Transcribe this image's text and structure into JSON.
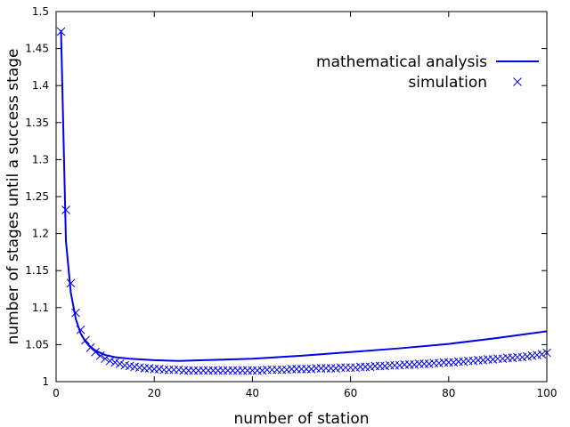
{
  "chart_data": {
    "type": "line",
    "xlabel": "number of station",
    "ylabel": "number of stages until a success stage",
    "xlim": [
      0,
      100
    ],
    "ylim": [
      1,
      1.5
    ],
    "x_ticks": [
      0,
      20,
      40,
      60,
      80,
      100
    ],
    "x_tick_labels": [
      "0",
      "20",
      "40",
      "60",
      "80",
      "100"
    ],
    "y_ticks": [
      1,
      1.05,
      1.1,
      1.15,
      1.2,
      1.25,
      1.3,
      1.35,
      1.4,
      1.45,
      1.5
    ],
    "y_tick_labels": [
      "1",
      "1.05",
      "1.1",
      "1.15",
      "1.2",
      "1.25",
      "1.3",
      "1.35",
      "1.4",
      "1.45",
      "1.5"
    ],
    "grid": false,
    "legend_position": "top-right",
    "colors": {
      "series": "#0000ee",
      "frame": "#000000"
    },
    "series": [
      {
        "name": "mathematical analysis",
        "style": "line",
        "x": [
          1,
          2,
          3,
          4,
          5,
          6,
          7,
          8,
          9,
          10,
          12,
          15,
          20,
          25,
          30,
          40,
          50,
          60,
          70,
          80,
          90,
          100
        ],
        "y": [
          1.475,
          1.19,
          1.12,
          1.085,
          1.065,
          1.054,
          1.047,
          1.042,
          1.039,
          1.036,
          1.033,
          1.031,
          1.029,
          1.028,
          1.029,
          1.031,
          1.035,
          1.04,
          1.045,
          1.051,
          1.059,
          1.068
        ]
      },
      {
        "name": "simulation",
        "style": "markers",
        "marker": "x",
        "x": [
          1,
          2,
          3,
          4,
          5,
          6,
          7,
          8,
          9,
          10,
          11,
          12,
          13,
          14,
          15,
          16,
          17,
          18,
          19,
          20,
          21,
          22,
          23,
          24,
          25,
          26,
          27,
          28,
          29,
          30,
          31,
          32,
          33,
          34,
          35,
          36,
          37,
          38,
          39,
          40,
          41,
          42,
          43,
          44,
          45,
          46,
          47,
          48,
          49,
          50,
          51,
          52,
          53,
          54,
          55,
          56,
          57,
          58,
          59,
          60,
          61,
          62,
          63,
          64,
          65,
          66,
          67,
          68,
          69,
          70,
          71,
          72,
          73,
          74,
          75,
          76,
          77,
          78,
          79,
          80,
          81,
          82,
          83,
          84,
          85,
          86,
          87,
          88,
          89,
          90,
          91,
          92,
          93,
          94,
          95,
          96,
          97,
          98,
          99,
          100
        ],
        "y": [
          1.473,
          1.232,
          1.133,
          1.093,
          1.07,
          1.056,
          1.046,
          1.04,
          1.035,
          1.031,
          1.028,
          1.026,
          1.024,
          1.022,
          1.021,
          1.02,
          1.019,
          1.018,
          1.018,
          1.017,
          1.017,
          1.016,
          1.016,
          1.016,
          1.016,
          1.015,
          1.015,
          1.015,
          1.015,
          1.015,
          1.015,
          1.015,
          1.015,
          1.015,
          1.015,
          1.015,
          1.015,
          1.015,
          1.015,
          1.015,
          1.015,
          1.015,
          1.016,
          1.016,
          1.016,
          1.016,
          1.016,
          1.017,
          1.017,
          1.017,
          1.017,
          1.017,
          1.018,
          1.018,
          1.018,
          1.018,
          1.018,
          1.019,
          1.019,
          1.019,
          1.019,
          1.02,
          1.02,
          1.02,
          1.021,
          1.021,
          1.021,
          1.022,
          1.022,
          1.022,
          1.023,
          1.023,
          1.023,
          1.024,
          1.024,
          1.024,
          1.025,
          1.025,
          1.026,
          1.026,
          1.026,
          1.027,
          1.027,
          1.028,
          1.028,
          1.029,
          1.029,
          1.03,
          1.03,
          1.031,
          1.031,
          1.032,
          1.032,
          1.033,
          1.033,
          1.034,
          1.035,
          1.036,
          1.037,
          1.039
        ]
      }
    ]
  }
}
